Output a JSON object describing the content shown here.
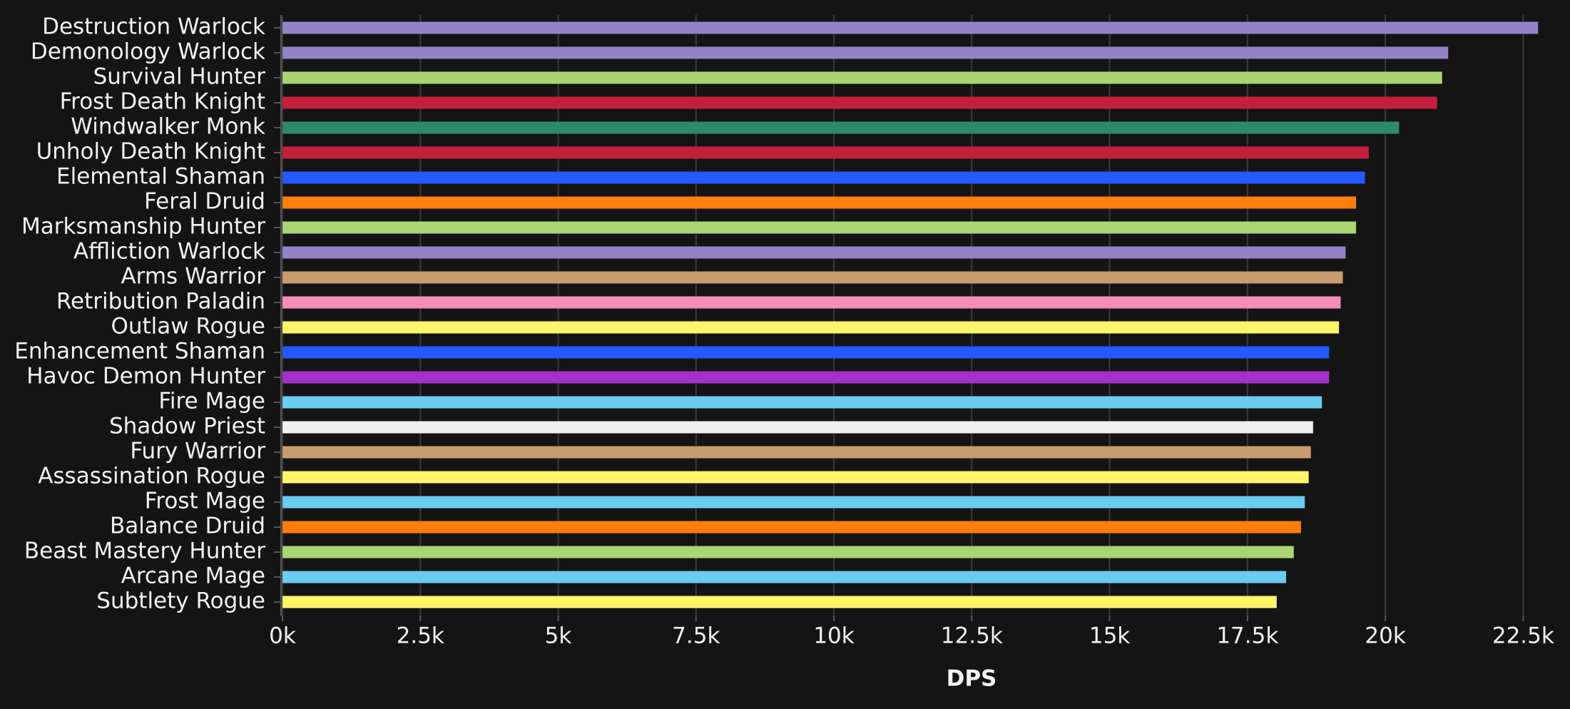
{
  "chart_data": {
    "type": "bar",
    "orientation": "horizontal",
    "xlabel": "DPS",
    "categories": [
      "Destruction Warlock",
      "Demonology Warlock",
      "Survival Hunter",
      "Frost Death Knight",
      "Windwalker Monk",
      "Unholy Death Knight",
      "Elemental Shaman",
      "Feral Druid",
      "Marksmanship Hunter",
      "Affliction Warlock",
      "Arms Warrior",
      "Retribution Paladin",
      "Outlaw Rogue",
      "Enhancement Shaman",
      "Havoc Demon Hunter",
      "Fire Mage",
      "Shadow Priest",
      "Fury Warrior",
      "Assassination Rogue",
      "Frost Mage",
      "Balance Druid",
      "Beast Mastery Hunter",
      "Arcane Mage",
      "Subtlety Rogue"
    ],
    "values": [
      22770,
      21140,
      21030,
      20940,
      20250,
      19700,
      19630,
      19470,
      19470,
      19280,
      19230,
      19190,
      19160,
      18980,
      18980,
      18850,
      18690,
      18650,
      18610,
      18540,
      18470,
      18340,
      18200,
      18030
    ],
    "colors": [
      "#9482c9",
      "#9482c9",
      "#abd473",
      "#c41f3b",
      "#2e8b68",
      "#c41f3b",
      "#2359ff",
      "#ff7d0a",
      "#abd473",
      "#9482c9",
      "#c79c6e",
      "#f58cba",
      "#fff569",
      "#2359ff",
      "#a330c9",
      "#69ccf0",
      "#f0f0f0",
      "#c79c6e",
      "#fff569",
      "#69ccf0",
      "#ff7d0a",
      "#abd473",
      "#69ccf0",
      "#fff569"
    ],
    "xlim": [
      0,
      23000
    ],
    "xticks": [
      {
        "value": 0,
        "label": "0k"
      },
      {
        "value": 2500,
        "label": "2.5k"
      },
      {
        "value": 5000,
        "label": "5k"
      },
      {
        "value": 7500,
        "label": "7.5k"
      },
      {
        "value": 10000,
        "label": "10k"
      },
      {
        "value": 12500,
        "label": "12.5k"
      },
      {
        "value": 15000,
        "label": "15k"
      },
      {
        "value": 17500,
        "label": "17.5k"
      },
      {
        "value": 20000,
        "label": "20k"
      },
      {
        "value": 22500,
        "label": "22.5k"
      }
    ],
    "grid": true
  }
}
